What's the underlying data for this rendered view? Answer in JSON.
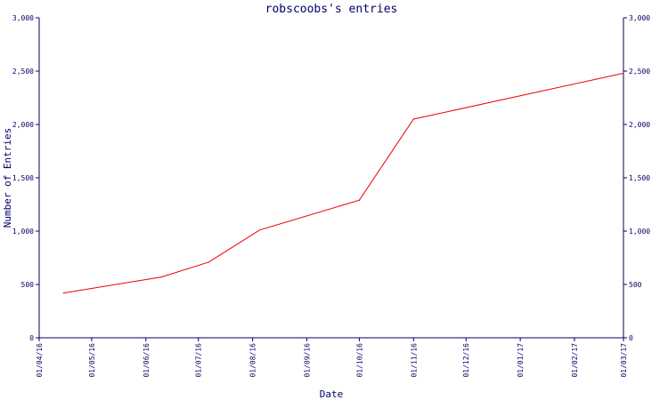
{
  "chart_data": {
    "type": "line",
    "title": "robscoobs's entries",
    "xlabel": "Date",
    "ylabel": "Number of Entries",
    "ylim": [
      0,
      3000
    ],
    "y_ticks": [
      0,
      500,
      1000,
      1500,
      2000,
      2500,
      3000
    ],
    "y_tick_labels": [
      "0",
      "500",
      "1,000",
      "1,500",
      "2,000",
      "2,500",
      "3,000"
    ],
    "x_range": [
      "2016-04-01",
      "2017-03-01"
    ],
    "x_ticks": [
      "2016-04-01",
      "2016-05-01",
      "2016-06-01",
      "2016-07-01",
      "2016-08-01",
      "2016-09-01",
      "2016-10-01",
      "2016-11-01",
      "2016-12-01",
      "2017-01-01",
      "2017-02-01",
      "2017-03-01"
    ],
    "x_tick_labels": [
      "01/04/16",
      "01/05/16",
      "01/06/16",
      "01/07/16",
      "01/08/16",
      "01/09/16",
      "01/10/16",
      "01/11/16",
      "01/12/16",
      "01/01/17",
      "01/02/17",
      "01/03/17"
    ],
    "grid": false,
    "series": [
      {
        "color": "#ee0000",
        "points": [
          {
            "x": "2016-04-15",
            "y": 420
          },
          {
            "x": "2016-06-10",
            "y": 570
          },
          {
            "x": "2016-07-07",
            "y": 710
          },
          {
            "x": "2016-08-05",
            "y": 1010
          },
          {
            "x": "2016-10-01",
            "y": 1290
          },
          {
            "x": "2016-11-01",
            "y": 2050
          },
          {
            "x": "2017-03-01",
            "y": 2480
          }
        ]
      }
    ]
  }
}
